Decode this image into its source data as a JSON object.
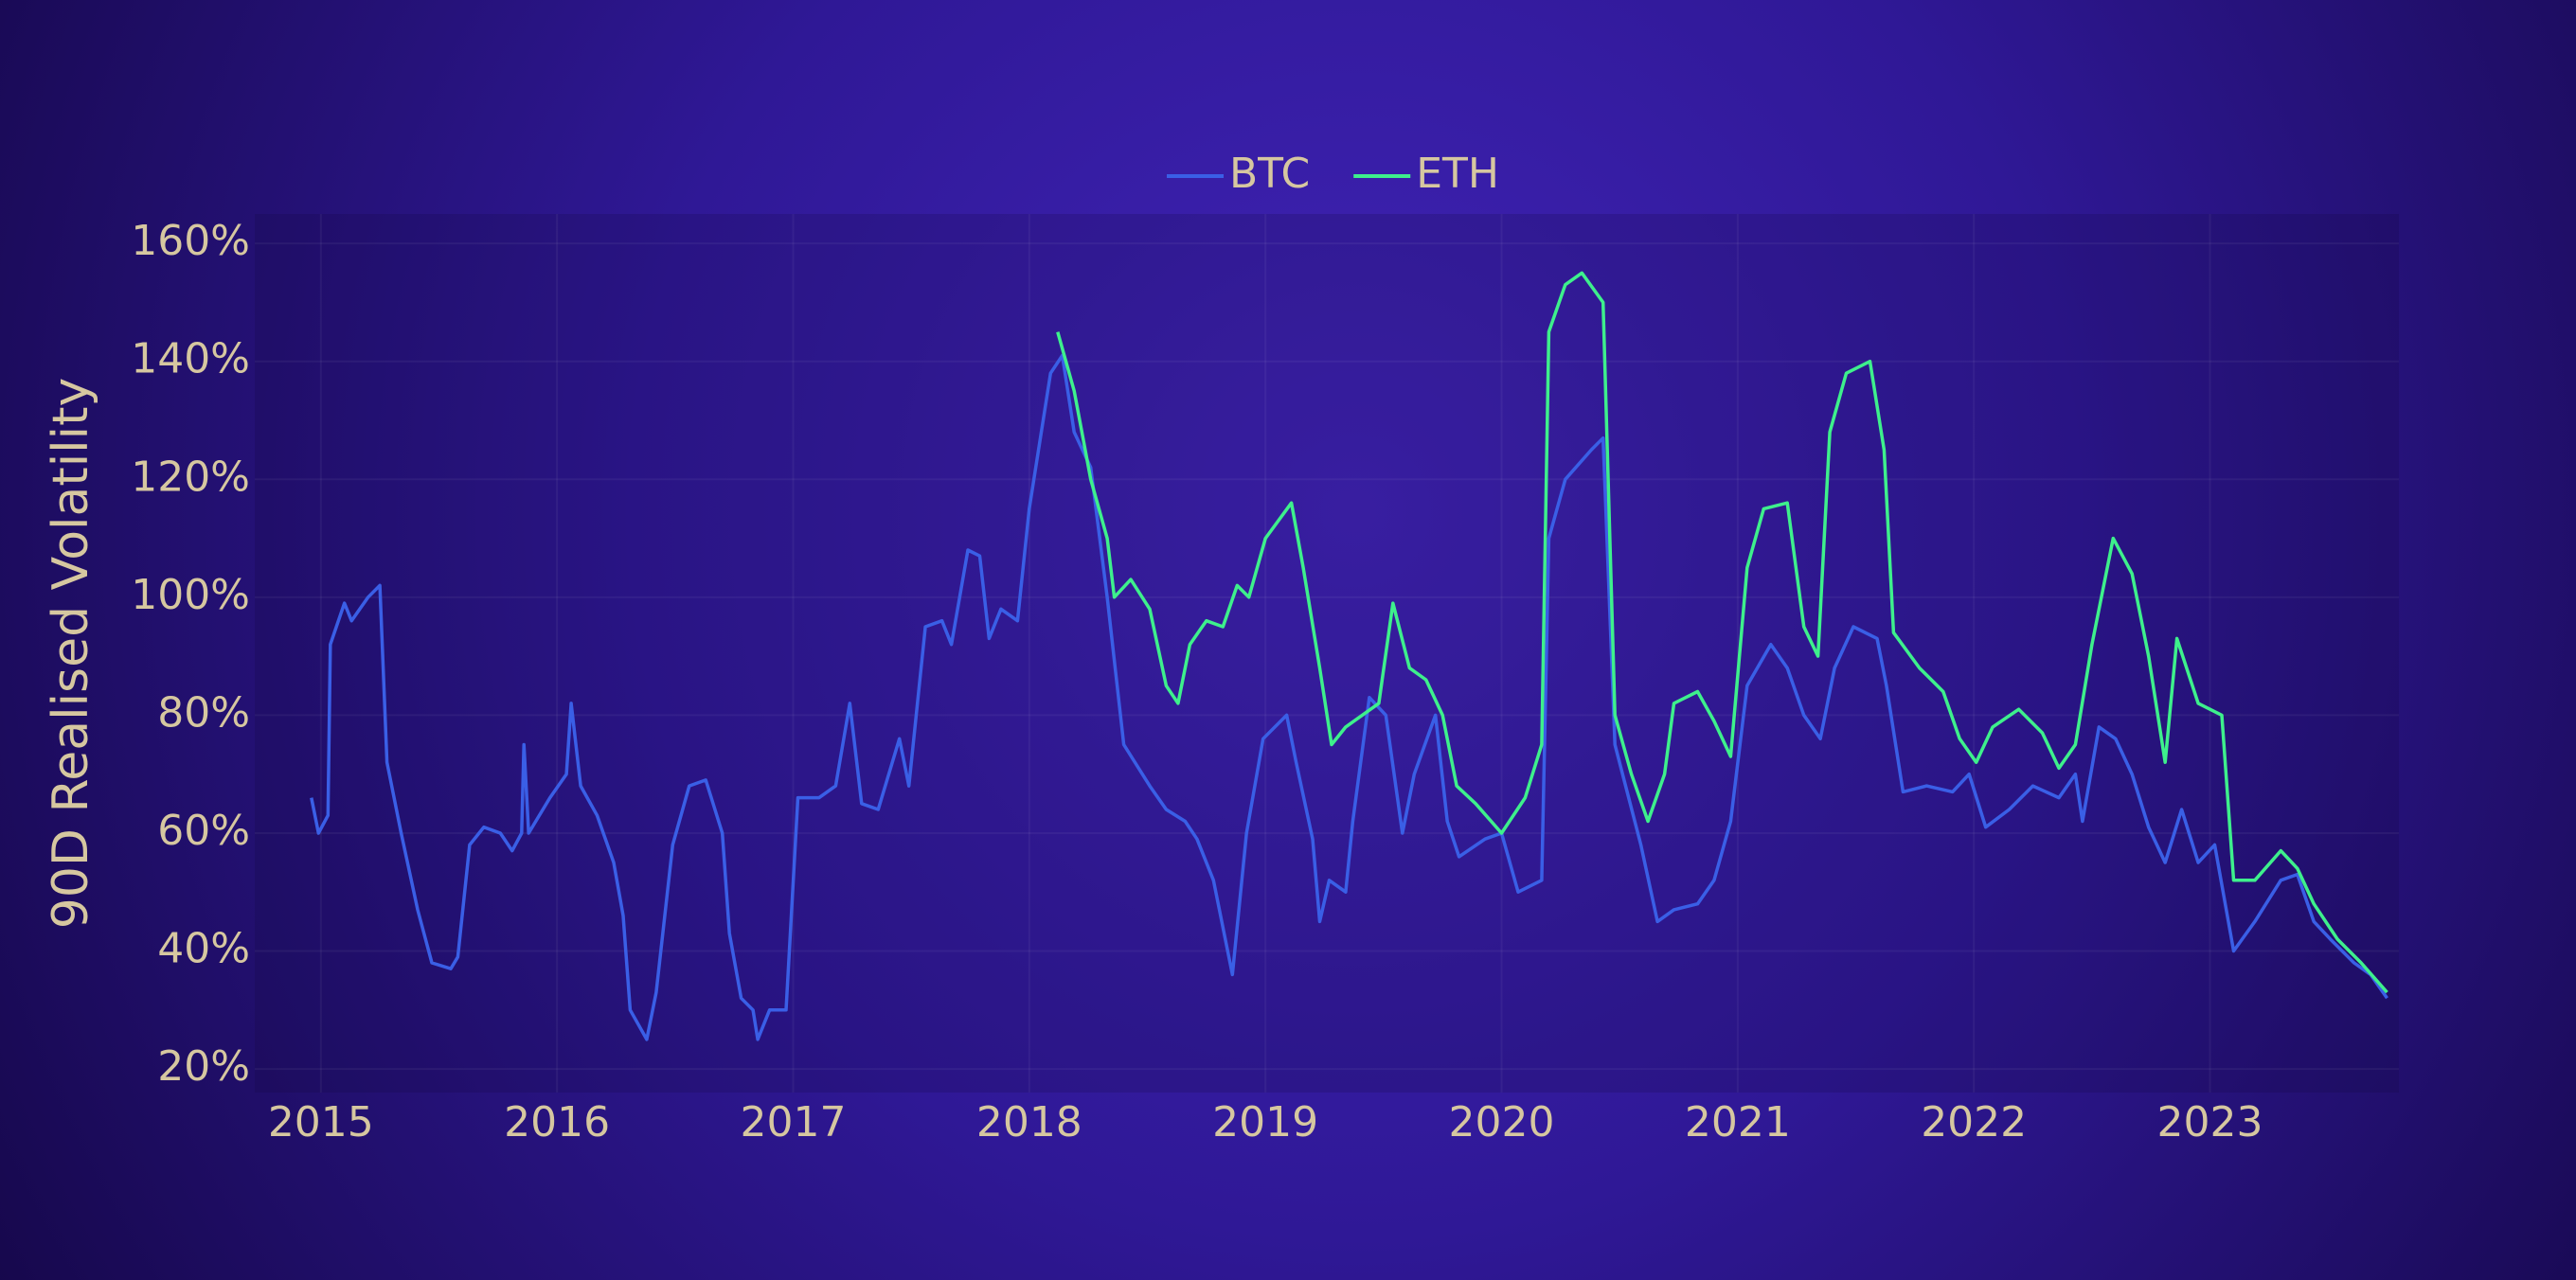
{
  "chart_data": {
    "type": "line",
    "y_label": "90D Realised Volatility",
    "xlim": [
      2014.72,
      2023.8
    ],
    "xticks": [
      2015,
      2016,
      2017,
      2018,
      2019,
      2020,
      2021,
      2022,
      2023
    ],
    "ylim": [
      16,
      165
    ],
    "yticks": [
      {
        "value": 20,
        "label": "20%"
      },
      {
        "value": 40,
        "label": "40%"
      },
      {
        "value": 60,
        "label": "60%"
      },
      {
        "value": 80,
        "label": "80%"
      },
      {
        "value": 100,
        "label": "100%"
      },
      {
        "value": 120,
        "label": "120%"
      },
      {
        "value": 140,
        "label": "140%"
      },
      {
        "value": 160,
        "label": "160%"
      }
    ],
    "grid": true,
    "legend": "top",
    "series": [
      {
        "name": "BTC",
        "color": "#3a5fe6",
        "x": [
          2014.96,
          2014.99,
          2015.03,
          2015.04,
          2015.1,
          2015.13,
          2015.2,
          2015.25,
          2015.28,
          2015.34,
          2015.41,
          2015.47,
          2015.55,
          2015.58,
          2015.63,
          2015.69,
          2015.76,
          2015.81,
          2015.85,
          2015.86,
          2015.88,
          2015.97,
          2016.04,
          2016.06,
          2016.1,
          2016.17,
          2016.24,
          2016.28,
          2016.31,
          2016.38,
          2016.42,
          2016.49,
          2016.56,
          2016.63,
          2016.7,
          2016.73,
          2016.78,
          2016.83,
          2016.85,
          2016.9,
          2016.97,
          2017.02,
          2017.11,
          2017.18,
          2017.24,
          2017.29,
          2017.36,
          2017.45,
          2017.49,
          2017.56,
          2017.63,
          2017.67,
          2017.74,
          2017.79,
          2017.83,
          2017.88,
          2017.95,
          2018.0,
          2018.09,
          2018.14,
          2018.19,
          2018.26,
          2018.33,
          2018.4,
          2018.51,
          2018.58,
          2018.66,
          2018.71,
          2018.78,
          2018.86,
          2018.92,
          2018.99,
          2019.09,
          2019.13,
          2019.2,
          2019.23,
          2019.27,
          2019.34,
          2019.37,
          2019.44,
          2019.51,
          2019.58,
          2019.63,
          2019.72,
          2019.77,
          2019.82,
          2019.93,
          2020.0,
          2020.07,
          2020.17,
          2020.2,
          2020.27,
          2020.38,
          2020.43,
          2020.48,
          2020.59,
          2020.66,
          2020.73,
          2020.83,
          2020.9,
          2020.97,
          2021.04,
          2021.14,
          2021.21,
          2021.28,
          2021.35,
          2021.41,
          2021.49,
          2021.59,
          2021.63,
          2021.7,
          2021.8,
          2021.91,
          2021.98,
          2022.05,
          2022.15,
          2022.25,
          2022.36,
          2022.43,
          2022.46,
          2022.53,
          2022.6,
          2022.67,
          2022.74,
          2022.81,
          2022.88,
          2022.95,
          2023.02,
          2023.1,
          2023.19,
          2023.3,
          2023.37,
          2023.44,
          2023.51,
          2023.61,
          2023.68,
          2023.75
        ],
        "values": [
          66,
          60,
          63,
          92,
          99,
          96,
          100,
          102,
          72,
          60,
          47,
          38,
          37,
          39,
          58,
          61,
          60,
          57,
          60,
          75,
          60,
          66,
          70,
          82,
          68,
          63,
          55,
          46,
          30,
          25,
          33,
          58,
          68,
          69,
          60,
          43,
          32,
          30,
          25,
          30,
          30,
          66,
          66,
          68,
          82,
          65,
          64,
          76,
          68,
          95,
          96,
          92,
          108,
          107,
          93,
          98,
          96,
          115,
          138,
          141,
          128,
          122,
          100,
          75,
          68,
          64,
          62,
          59,
          52,
          36,
          60,
          76,
          80,
          72,
          59,
          45,
          52,
          50,
          62,
          83,
          80,
          60,
          70,
          80,
          62,
          56,
          59,
          60,
          50,
          52,
          110,
          120,
          125,
          127,
          75,
          58,
          45,
          47,
          48,
          52,
          62,
          85,
          92,
          88,
          80,
          76,
          88,
          95,
          93,
          85,
          67,
          68,
          67,
          70,
          61,
          64,
          68,
          66,
          70,
          62,
          78,
          76,
          70,
          61,
          55,
          64,
          55,
          58,
          40,
          45,
          52,
          53,
          45,
          42,
          38,
          36,
          32
        ]
      },
      {
        "name": "ETH",
        "color": "#3ef08c",
        "x": [
          2018.12,
          2018.19,
          2018.26,
          2018.33,
          2018.36,
          2018.43,
          2018.51,
          2018.58,
          2018.63,
          2018.68,
          2018.75,
          2018.82,
          2018.88,
          2018.93,
          2019.0,
          2019.11,
          2019.16,
          2019.23,
          2019.28,
          2019.34,
          2019.41,
          2019.48,
          2019.54,
          2019.61,
          2019.68,
          2019.75,
          2019.81,
          2019.89,
          2020.0,
          2020.1,
          2020.17,
          2020.2,
          2020.27,
          2020.34,
          2020.43,
          2020.48,
          2020.55,
          2020.62,
          2020.69,
          2020.73,
          2020.83,
          2020.9,
          2020.97,
          2021.04,
          2021.11,
          2021.21,
          2021.28,
          2021.34,
          2021.39,
          2021.46,
          2021.56,
          2021.62,
          2021.66,
          2021.77,
          2021.87,
          2021.94,
          2022.01,
          2022.08,
          2022.19,
          2022.29,
          2022.36,
          2022.43,
          2022.5,
          2022.59,
          2022.67,
          2022.74,
          2022.81,
          2022.86,
          2022.95,
          2023.05,
          2023.1,
          2023.19,
          2023.3,
          2023.37,
          2023.44,
          2023.54,
          2023.64,
          2023.75
        ],
        "values": [
          145,
          135,
          120,
          110,
          100,
          103,
          98,
          85,
          82,
          92,
          96,
          95,
          102,
          100,
          110,
          116,
          105,
          88,
          75,
          78,
          80,
          82,
          99,
          88,
          86,
          80,
          68,
          65,
          60,
          66,
          75,
          145,
          153,
          155,
          150,
          80,
          70,
          62,
          70,
          82,
          84,
          79,
          73,
          105,
          115,
          116,
          95,
          90,
          128,
          138,
          140,
          125,
          94,
          88,
          84,
          76,
          72,
          78,
          81,
          77,
          71,
          75,
          92,
          110,
          104,
          90,
          72,
          93,
          82,
          80,
          52,
          52,
          57,
          54,
          48,
          42,
          38,
          33
        ]
      }
    ]
  }
}
